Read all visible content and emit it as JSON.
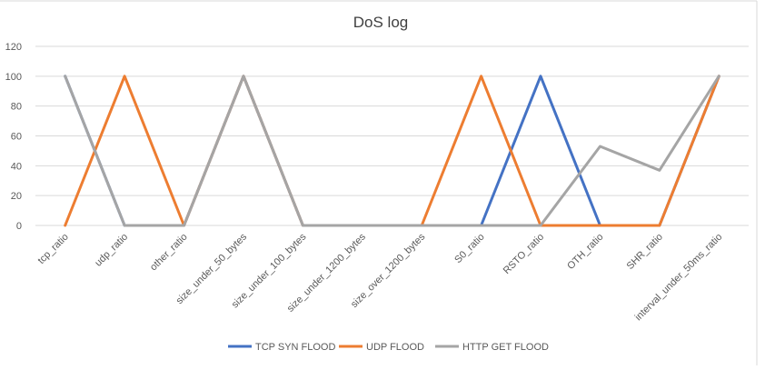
{
  "chart_data": {
    "type": "line",
    "title": "DoS log",
    "xlabel": "",
    "ylabel": "",
    "ylim": [
      0,
      120
    ],
    "yticks": [
      0,
      20,
      40,
      60,
      80,
      100,
      120
    ],
    "grid": true,
    "legend_position": "bottom",
    "categories": [
      "tcp_ratio",
      "udp_ratio",
      "other_ratio",
      "size_under_50_bytes",
      "size_under_100_bytes",
      "size_under_1200_bytes",
      "size_over_1200_bytes",
      "S0_ratio",
      "RSTO_ratio",
      "OTH_ratio",
      "SHR_ratio",
      "interval_under_50ms_ratio"
    ],
    "series": [
      {
        "name": "TCP SYN FLOOD",
        "color": "#4472C4",
        "values": [
          100,
          0,
          0,
          100,
          0,
          0,
          0,
          0,
          100,
          0,
          0,
          100
        ]
      },
      {
        "name": "UDP FLOOD",
        "color": "#ED7D31",
        "values": [
          0,
          100,
          0,
          100,
          0,
          0,
          0,
          100,
          0,
          0,
          0,
          100
        ]
      },
      {
        "name": "HTTP GET FLOOD",
        "color": "#A5A5A5",
        "values": [
          100,
          0,
          0,
          100,
          0,
          0,
          0,
          0,
          0,
          53,
          37,
          100
        ]
      }
    ],
    "colors": {
      "grid": "#d9d9d9",
      "text": "#595959",
      "title": "#404040"
    }
  }
}
